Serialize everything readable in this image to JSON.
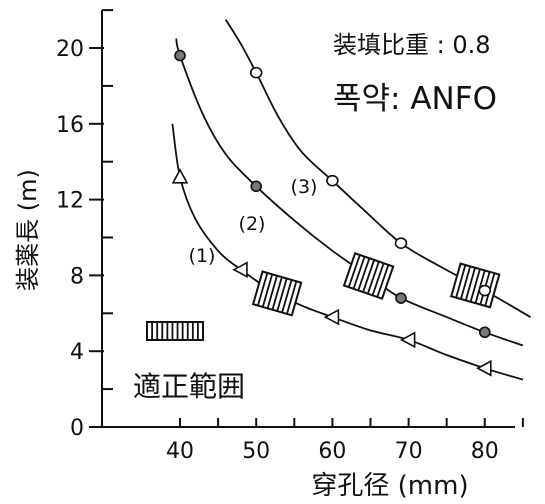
{
  "chart_data": {
    "type": "line",
    "title": "",
    "annotations": {
      "charge_ratio": "装填比重 : 0.8",
      "explosive": "폭약: ANFO",
      "legend_label": "適正範囲"
    },
    "xlabel": "穿孔径 (mm)",
    "ylabel": "装薬長 (m)",
    "xlim": [
      35,
      86
    ],
    "ylim": [
      0,
      22
    ],
    "xticks": [
      "40",
      "50",
      "60",
      "70",
      "80"
    ],
    "yticks": [
      "0",
      "4",
      "8",
      "12",
      "16",
      "20"
    ],
    "grid": false,
    "series": [
      {
        "name": "(1)",
        "marker": "triangle",
        "points": [
          [
            40,
            13.2
          ],
          [
            48,
            8.3
          ],
          [
            60,
            5.8
          ],
          [
            70,
            4.6
          ],
          [
            80,
            3.1
          ]
        ],
        "curve": [
          [
            39,
            16
          ],
          [
            40,
            13.2
          ],
          [
            42,
            11
          ],
          [
            45,
            9.3
          ],
          [
            48,
            8.3
          ],
          [
            52,
            7.2
          ],
          [
            56,
            6.4
          ],
          [
            60,
            5.8
          ],
          [
            65,
            5.1
          ],
          [
            70,
            4.6
          ],
          [
            75,
            3.8
          ],
          [
            80,
            3.1
          ],
          [
            85,
            2.5
          ]
        ],
        "optimal_range": [
          50.5,
          55
        ]
      },
      {
        "name": "(2)",
        "marker": "cross-circle",
        "points": [
          [
            40,
            19.6
          ],
          [
            50,
            12.7
          ],
          [
            69,
            6.8
          ],
          [
            80,
            5.0
          ]
        ],
        "curve": [
          [
            39.5,
            20.5
          ],
          [
            40,
            19.6
          ],
          [
            43,
            16.5
          ],
          [
            46,
            14.4
          ],
          [
            50,
            12.7
          ],
          [
            55,
            10.9
          ],
          [
            60,
            9.3
          ],
          [
            65,
            7.9
          ],
          [
            69,
            6.8
          ],
          [
            75,
            5.8
          ],
          [
            80,
            5.0
          ],
          [
            85,
            4.3
          ]
        ],
        "optimal_range": [
          62.5,
          67
        ]
      },
      {
        "name": "(3)",
        "marker": "circle",
        "points": [
          [
            50,
            18.7
          ],
          [
            60,
            13.0
          ],
          [
            69,
            9.7
          ],
          [
            80,
            7.2
          ]
        ],
        "curve": [
          [
            46,
            21.5
          ],
          [
            48,
            20.2
          ],
          [
            50,
            18.7
          ],
          [
            53,
            16.3
          ],
          [
            56,
            14.5
          ],
          [
            60,
            13.0
          ],
          [
            64,
            11.5
          ],
          [
            69,
            9.7
          ],
          [
            74,
            8.5
          ],
          [
            80,
            7.2
          ],
          [
            86,
            5.8
          ]
        ],
        "optimal_range": [
          76.5,
          81
        ]
      }
    ]
  }
}
